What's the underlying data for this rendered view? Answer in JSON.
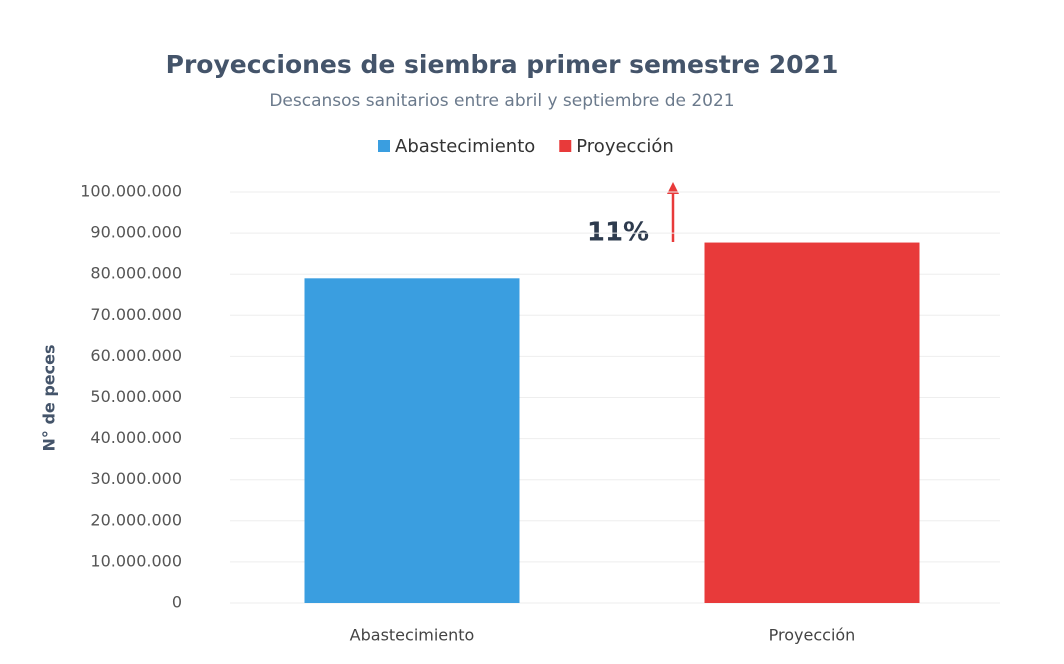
{
  "chart_data": {
    "type": "bar",
    "title": "Proyecciones de siembra primer semestre 2021",
    "subtitle": "Descansos sanitarios entre abril y septiembre de 2021",
    "y_label": "N° de peces",
    "annotation": "11%",
    "categories": [
      "Abastecimiento",
      "Proyección"
    ],
    "series": [
      {
        "name": "Abastecimiento",
        "color": "#3a9ee0",
        "values": [
          79000000,
          null
        ]
      },
      {
        "name": "Proyección",
        "color": "#e83a3a",
        "values": [
          null,
          87700000
        ]
      }
    ],
    "ylim": [
      0,
      100000000
    ],
    "yticks": [
      0,
      {
        "value": 10000000,
        "label": "10.000.000"
      },
      {
        "value": 20000000,
        "label": "20.000.000"
      },
      {
        "value": 30000000,
        "label": "30.000.000"
      },
      {
        "value": 40000000,
        "label": "40.000.000"
      },
      {
        "value": 50000000,
        "label": "50.000.000"
      },
      {
        "value": 60000000,
        "label": "60.000.000"
      },
      {
        "value": 70000000,
        "label": "70.000.000"
      },
      {
        "value": 80000000,
        "label": "80.000.000"
      },
      {
        "value": 90000000,
        "label": "90.000.000"
      },
      {
        "value": 100000000,
        "label": "100.000.000"
      }
    ],
    "grid": true,
    "legend": "top"
  }
}
